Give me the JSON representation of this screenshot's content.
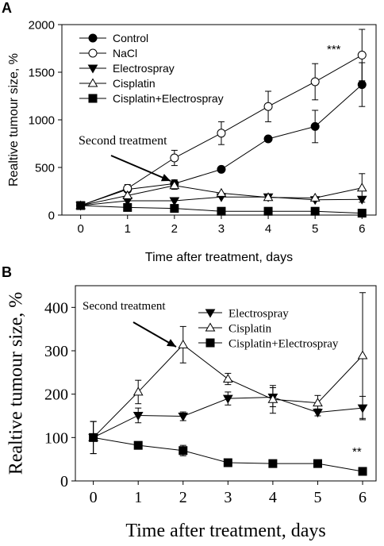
{
  "chart_data": [
    {
      "panel_label": "A",
      "type": "line",
      "xlabel": "Time after treatment, days",
      "ylabel": "Realtive tumour size, %",
      "x": [
        0,
        1,
        2,
        3,
        4,
        5,
        6
      ],
      "xlim": [
        -0.4,
        6.3
      ],
      "ylim": [
        0,
        2000
      ],
      "yticks": [
        0,
        500,
        1000,
        1500,
        2000
      ],
      "legend_position": "top-left",
      "annotations": [
        {
          "text": "Second treatment",
          "x": 2,
          "y": 600
        },
        {
          "text": "***",
          "x": 5.6,
          "y": 1740
        }
      ],
      "series": [
        {
          "name": "Control",
          "marker": "filled-circle",
          "values": [
            100,
            270,
            330,
            480,
            800,
            930,
            1370
          ],
          "errors": [
            0,
            0,
            40,
            0,
            0,
            170,
            230
          ]
        },
        {
          "name": "NaCl",
          "marker": "open-circle",
          "values": [
            100,
            280,
            600,
            860,
            1140,
            1400,
            1680
          ],
          "errors": [
            0,
            40,
            80,
            120,
            160,
            190,
            270
          ]
        },
        {
          "name": "Electrospray",
          "marker": "filled-triangle-down",
          "values": [
            100,
            150,
            150,
            190,
            190,
            160,
            165
          ],
          "errors": [
            0,
            0,
            0,
            0,
            0,
            0,
            0
          ]
        },
        {
          "name": "Cisplatin",
          "marker": "open-triangle-up",
          "values": [
            100,
            205,
            310,
            230,
            185,
            180,
            285
          ],
          "errors": [
            0,
            0,
            40,
            0,
            0,
            0,
            150
          ]
        },
        {
          "name": "Cisplatin+Electrospray",
          "marker": "filled-square",
          "values": [
            100,
            80,
            70,
            40,
            40,
            40,
            20
          ],
          "errors": [
            0,
            0,
            0,
            0,
            0,
            0,
            0
          ]
        }
      ]
    },
    {
      "panel_label": "B",
      "type": "line",
      "xlabel": "Time after treatment, days",
      "ylabel": "Realtive tumour size, %",
      "x": [
        0,
        1,
        2,
        3,
        4,
        5,
        6
      ],
      "xlim": [
        -0.4,
        6.3
      ],
      "ylim": [
        0,
        450
      ],
      "yticks": [
        0,
        100,
        200,
        300,
        400
      ],
      "legend_position": "top-right",
      "annotations": [
        {
          "text": "Second treatment",
          "x": 2,
          "y": 315
        },
        {
          "text": "**",
          "x": 5.8,
          "y": 40
        }
      ],
      "series": [
        {
          "name": "Electrospray",
          "marker": "filled-triangle-down",
          "values": [
            100,
            151,
            149,
            190,
            193,
            158,
            168
          ],
          "errors": [
            37,
            17,
            10,
            15,
            22,
            8,
            27
          ]
        },
        {
          "name": "Cisplatin",
          "marker": "open-triangle-up",
          "values": [
            100,
            205,
            314,
            235,
            188,
            180,
            289
          ],
          "errors": [
            37,
            27,
            42,
            13,
            32,
            17,
            145
          ]
        },
        {
          "name": "Cisplatin+Electrospray",
          "marker": "filled-square",
          "values": [
            100,
            82,
            70,
            42,
            40,
            40,
            22
          ],
          "errors": [
            37,
            6,
            12,
            4,
            4,
            4,
            3
          ]
        }
      ]
    }
  ]
}
